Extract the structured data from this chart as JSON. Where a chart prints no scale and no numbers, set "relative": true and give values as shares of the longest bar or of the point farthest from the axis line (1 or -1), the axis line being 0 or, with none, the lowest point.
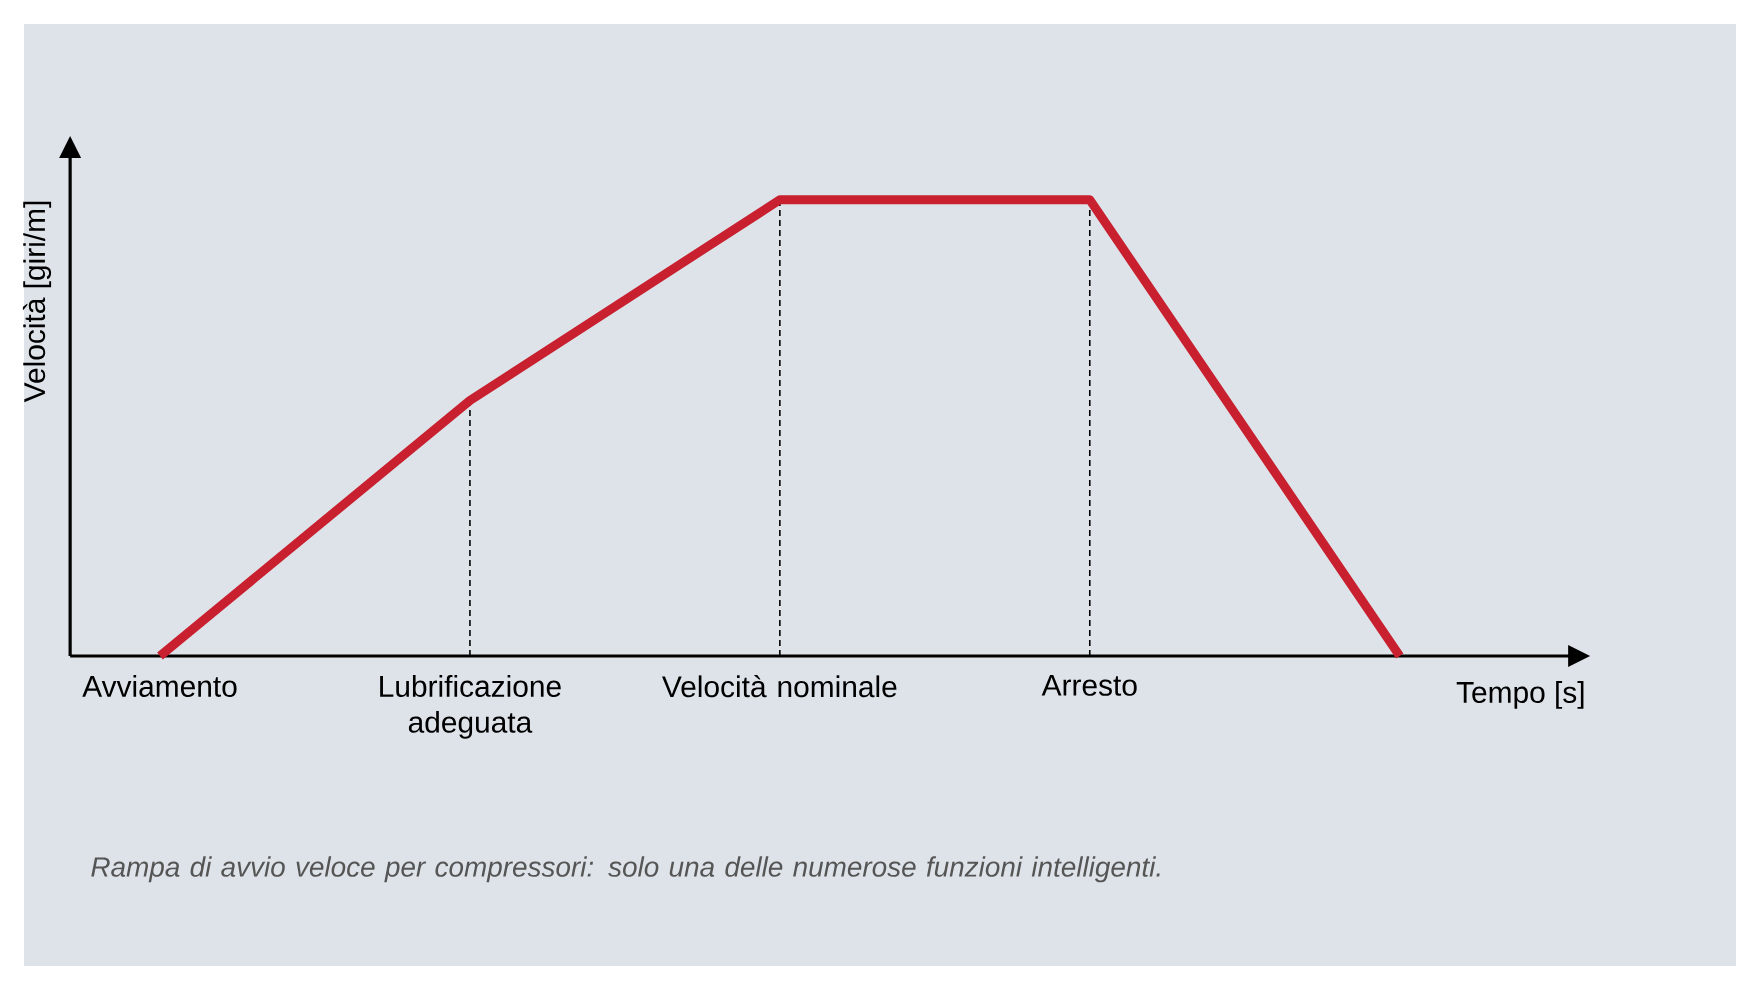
{
  "chart_data": {
    "type": "line",
    "relative": true,
    "categories": [
      "Avviamento",
      "Lubrificazione adeguata",
      "Velocità nominale",
      "Arresto",
      null
    ],
    "values": [
      0,
      0.56,
      1,
      1,
      0
    ],
    "color": "#c8202f",
    "line_style": "solid",
    "marker": "none",
    "grid": false,
    "xlabel": "Tempo [s]",
    "ylabel": "Velocità [giri/m]",
    "ref_lines": [
      {
        "axis": "x",
        "value": "Lubrificazione adeguata",
        "line_style": "dashed"
      },
      {
        "axis": "x",
        "value": "Velocità nominale",
        "line_style": "dashed"
      },
      {
        "axis": "x",
        "value": "Arresto",
        "line_style": "dashed"
      }
    ],
    "annotations": [
      "Rampa di avvio veloce per compressori: solo una delle numerose funzioni intelligenti."
    ]
  }
}
